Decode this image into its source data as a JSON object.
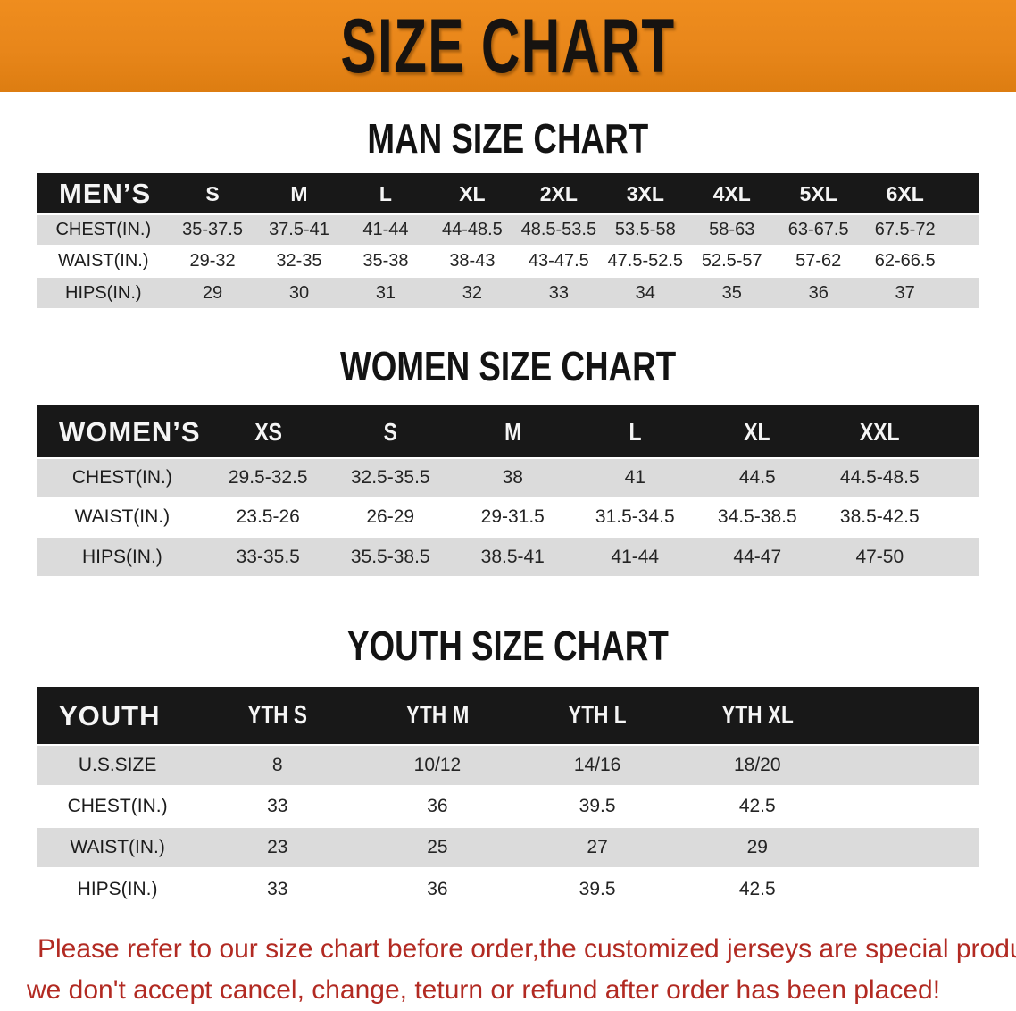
{
  "banner": {
    "title": "SIZE CHART"
  },
  "colors": {
    "banner_bg": "#e8861a",
    "table_header_bg": "#181818",
    "row_gray": "#dbdbdb",
    "notice_red": "#b22a22"
  },
  "sections": [
    {
      "heading": "MAN SIZE CHART",
      "corner_label": "MEN’S",
      "columns": [
        "S",
        "M",
        "L",
        "XL",
        "2XL",
        "3XL",
        "4XL",
        "5XL",
        "6XL"
      ],
      "rows": [
        {
          "label": "CHEST(IN.)",
          "values": [
            "35-37.5",
            "37.5-41",
            "41-44",
            "44-48.5",
            "48.5-53.5",
            "53.5-58",
            "58-63",
            "63-67.5",
            "67.5-72"
          ]
        },
        {
          "label": "WAIST(IN.)",
          "values": [
            "29-32",
            "32-35",
            "35-38",
            "38-43",
            "43-47.5",
            "47.5-52.5",
            "52.5-57",
            "57-62",
            "62-66.5"
          ]
        },
        {
          "label": "HIPS(IN.)",
          "values": [
            "29",
            "30",
            "31",
            "32",
            "33",
            "34",
            "35",
            "36",
            "37"
          ]
        }
      ]
    },
    {
      "heading": "WOMEN SIZE CHART",
      "corner_label": "WOMEN’S",
      "columns": [
        "XS",
        "S",
        "M",
        "L",
        "XL",
        "XXL"
      ],
      "rows": [
        {
          "label": "CHEST(IN.)",
          "values": [
            "29.5-32.5",
            "32.5-35.5",
            "38",
            "41",
            "44.5",
            "44.5-48.5"
          ]
        },
        {
          "label": "WAIST(IN.)",
          "values": [
            "23.5-26",
            "26-29",
            "29-31.5",
            "31.5-34.5",
            "34.5-38.5",
            "38.5-42.5"
          ]
        },
        {
          "label": "HIPS(IN.)",
          "values": [
            "33-35.5",
            "35.5-38.5",
            "38.5-41",
            "41-44",
            "44-47",
            "47-50"
          ]
        }
      ]
    },
    {
      "heading": "YOUTH SIZE CHART",
      "corner_label": "YOUTH",
      "columns": [
        "YTH S",
        "YTH M",
        "YTH L",
        "YTH XL"
      ],
      "rows": [
        {
          "label": "U.S.SIZE",
          "values": [
            "8",
            "10/12",
            "14/16",
            "18/20"
          ]
        },
        {
          "label": "CHEST(IN.)",
          "values": [
            "33",
            "36",
            "39.5",
            "42.5"
          ]
        },
        {
          "label": "WAIST(IN.)",
          "values": [
            "23",
            "25",
            "27",
            "29"
          ]
        },
        {
          "label": "HIPS(IN.)",
          "values": [
            "33",
            "36",
            "39.5",
            "42.5"
          ]
        }
      ]
    }
  ],
  "footer": {
    "line1": "Please refer to our size chart before order,the customized jerseys are special products,",
    "line2": "we don't accept cancel, change, teturn or refund after order has been placed!"
  }
}
